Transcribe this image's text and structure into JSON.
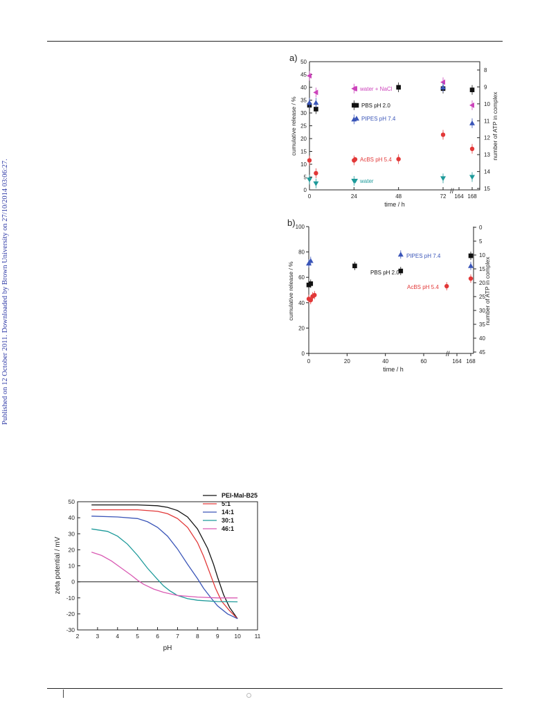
{
  "sidebar_note": "Published on 12 October 2011. Downloaded by Brown University on 27/10/2014 03:06:27.",
  "chart_data": [
    {
      "panel": "a)",
      "type": "scatter",
      "xlabel": "time / h",
      "ylabel": "cumulative release / %",
      "y2label": "number of ATP in complex",
      "x_ticks": [
        "0",
        "24",
        "48",
        "72",
        "164",
        "168"
      ],
      "y_ticks": [
        0,
        5,
        10,
        15,
        20,
        25,
        30,
        35,
        40,
        45,
        50
      ],
      "y2_ticks": [
        8,
        9,
        10,
        11,
        12,
        13,
        14,
        15
      ],
      "ylim": [
        0,
        50
      ],
      "series": [
        {
          "name": "water + NaCl",
          "color": "#cc44bb",
          "marker": "triangle-left",
          "points": [
            [
              0,
              44.5
            ],
            [
              3.5,
              38
            ],
            [
              24,
              39.5
            ],
            [
              72,
              42
            ],
            [
              168,
              33
            ]
          ]
        },
        {
          "name": "PBS pH 2.0",
          "color": "#111111",
          "marker": "square",
          "points": [
            [
              0,
              33
            ],
            [
              3.5,
              31.5
            ],
            [
              24,
              33
            ],
            [
              48,
              40
            ],
            [
              72,
              39.5
            ],
            [
              168,
              39
            ]
          ]
        },
        {
          "name": "PIPES pH 7.4",
          "color": "#3a55b8",
          "marker": "triangle-up",
          "points": [
            [
              0,
              34
            ],
            [
              3.5,
              34
            ],
            [
              24,
              27.5
            ],
            [
              72,
              40
            ],
            [
              168,
              26
            ]
          ]
        },
        {
          "name": "AcBS pH 5.4",
          "color": "#e23838",
          "marker": "circle",
          "points": [
            [
              0,
              11.5
            ],
            [
              3.5,
              6.5
            ],
            [
              24,
              11.5
            ],
            [
              48,
              12
            ],
            [
              72,
              21.5
            ],
            [
              168,
              16
            ]
          ]
        },
        {
          "name": "water",
          "color": "#1d9a9a",
          "marker": "triangle-down",
          "points": [
            [
              0,
              4
            ],
            [
              3.5,
              2.5
            ],
            [
              24,
              3.5
            ],
            [
              72,
              4.5
            ],
            [
              168,
              5
            ]
          ]
        }
      ]
    },
    {
      "panel": "b)",
      "type": "scatter",
      "xlabel": "time / h",
      "ylabel": "cumulative release / %",
      "y2label": "number of ATP in complex",
      "x_ticks": [
        "0",
        "20",
        "40",
        "60",
        "164",
        "168"
      ],
      "y_ticks": [
        0,
        20,
        40,
        60,
        80,
        100
      ],
      "y2_ticks": [
        0,
        5,
        10,
        15,
        20,
        25,
        30,
        35,
        40,
        45
      ],
      "ylim": [
        0,
        100
      ],
      "series": [
        {
          "name": "PIPES pH 7.4",
          "color": "#3a55b8",
          "marker": "triangle-up",
          "points": [
            [
              0,
              71
            ],
            [
              1,
              73
            ],
            [
              48,
              78
            ],
            [
              168,
              69
            ]
          ]
        },
        {
          "name": "PBS pH 2.0",
          "color": "#111111",
          "marker": "square",
          "points": [
            [
              0,
              54
            ],
            [
              1,
              55
            ],
            [
              24,
              69
            ],
            [
              48,
              65
            ],
            [
              168,
              77
            ]
          ]
        },
        {
          "name": "AcBS pH 5.4",
          "color": "#e23838",
          "marker": "circle",
          "points": [
            [
              0,
              43
            ],
            [
              1,
              42
            ],
            [
              2,
              45
            ],
            [
              3,
              46
            ],
            [
              72,
              53
            ],
            [
              168,
              59
            ]
          ]
        }
      ]
    },
    {
      "type": "line",
      "xlabel": "pH",
      "ylabel": "zeta potential / mV",
      "xlim": [
        2,
        11
      ],
      "ylim": [
        -30,
        50
      ],
      "x_ticks": [
        2,
        3,
        4,
        5,
        6,
        7,
        8,
        9,
        10,
        11
      ],
      "y_ticks": [
        -30,
        -20,
        -10,
        0,
        10,
        20,
        30,
        40,
        50
      ],
      "series": [
        {
          "name": "PEI-Mal-B25",
          "color": "#111111",
          "x": [
            2.7,
            4,
            5,
            6,
            6.5,
            7,
            7.5,
            8,
            8.5,
            8.8,
            9,
            9.3,
            9.6,
            10
          ],
          "y": [
            48,
            48,
            48,
            47.5,
            46.5,
            44.5,
            40.5,
            33,
            21,
            11,
            3,
            -8,
            -16,
            -23
          ]
        },
        {
          "name": "5:1",
          "color": "#e23838",
          "x": [
            2.7,
            4,
            5,
            6,
            6.5,
            7,
            7.5,
            8,
            8.3,
            8.6,
            8.9,
            9.2,
            9.6,
            10
          ],
          "y": [
            45,
            45,
            45,
            44,
            42.5,
            39.5,
            34,
            24.5,
            16,
            6,
            -4,
            -12,
            -18,
            -23
          ]
        },
        {
          "name": "14:1",
          "color": "#3a55b8",
          "x": [
            2.7,
            4,
            5,
            5.5,
            6,
            6.5,
            7,
            7.5,
            8,
            8.3,
            8.7,
            9,
            9.5,
            10
          ],
          "y": [
            41,
            40.5,
            39.5,
            37.5,
            34,
            28.5,
            20.5,
            11,
            2,
            -4,
            -10.5,
            -15,
            -20,
            -23
          ]
        },
        {
          "name": "30:1",
          "color": "#1d9a9a",
          "x": [
            2.7,
            3.5,
            4,
            4.5,
            5,
            5.5,
            6,
            6.3,
            6.6,
            7,
            7.5,
            8,
            9,
            10
          ],
          "y": [
            33,
            31.5,
            28.5,
            23.5,
            16.5,
            8.5,
            1.5,
            -2.5,
            -5.5,
            -8.5,
            -10.5,
            -11.5,
            -12.3,
            -12.5
          ]
        },
        {
          "name": "46:1",
          "color": "#d95ab3",
          "x": [
            2.7,
            3.2,
            3.7,
            4.2,
            4.7,
            5,
            5.3,
            5.8,
            6.3,
            7,
            8,
            9,
            10
          ],
          "y": [
            18.5,
            16.5,
            13,
            8.5,
            4,
            1,
            -1.5,
            -4.5,
            -6.5,
            -8.5,
            -9.5,
            -10,
            -10
          ]
        }
      ]
    }
  ]
}
